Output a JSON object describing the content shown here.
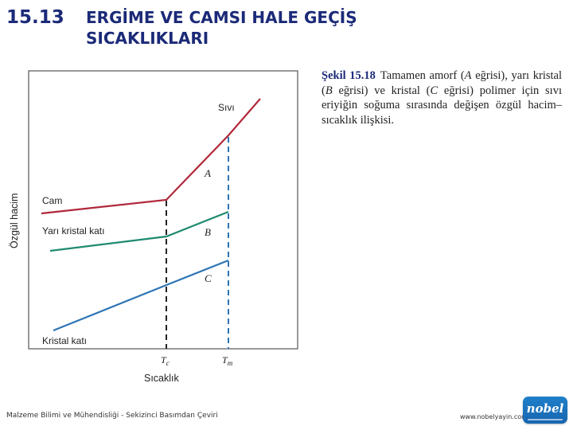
{
  "header": {
    "section_number": "15.13",
    "section_title": "ERGİME VE CAMSI HALE GEÇİŞ SICAKLIKLARI"
  },
  "caption": {
    "figure_label": "Şekil 15.18",
    "text_1": "Tamamen amorf (",
    "curve_a": "A",
    "text_2": " eğrisi), yarı kristal (",
    "curve_b": "B",
    "text_3": " eğrisi) ve kristal (",
    "curve_c": "C",
    "text_4": " eğrisi) polimer için sıvı eriyiğin soğuma sırasında değişen özgül hacim–sıcaklık ilişkisi."
  },
  "diagram": {
    "ylabel": "Özgül hacim",
    "xlabel": "Sıcaklık",
    "labels": {
      "liquid": "Sıvı",
      "glass": "Cam",
      "semicrystalline": "Yarı kristal katı",
      "crystalline": "Kristal katı",
      "curve_a": "A",
      "curve_b": "B",
      "curve_c": "C"
    },
    "ticks": {
      "tg_main": "T",
      "tg_sub": "c",
      "tm_main": "T",
      "tm_sub": "m"
    },
    "colors": {
      "curve_a": "#b0283a",
      "curve_b": "#1f8a70",
      "curve_c": "#2e74b5",
      "tg_line": "#222222",
      "tm_line": "#2e74b5"
    }
  },
  "footer": {
    "book_title": "Malzeme Bilimi ve Mühendisliği - Sekizinci Basımdan Çeviri",
    "url": "www.nobelyayin.com",
    "logo_text": "nobel"
  }
}
